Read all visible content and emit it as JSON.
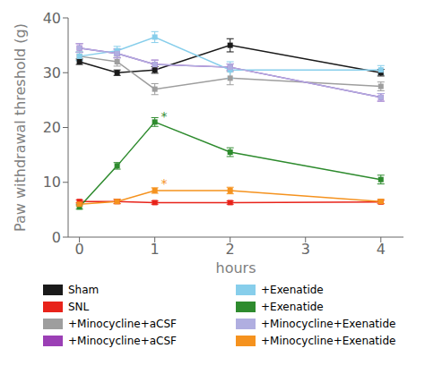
{
  "chart_data": {
    "type": "line",
    "xlabel": "hours",
    "ylabel": "Paw withdrawal threshold (g)",
    "x": [
      0,
      0.5,
      1,
      2,
      4
    ],
    "xlim": [
      -0.15,
      4.3
    ],
    "xticks": [
      0,
      1,
      2,
      3,
      4
    ],
    "ylim": [
      0,
      40
    ],
    "yticks": [
      0,
      10,
      20,
      30,
      40
    ],
    "grid": false,
    "legend": "bottom",
    "marker": "square",
    "line_style": "solid",
    "series": [
      {
        "name": "Sham",
        "color": "#1a1a1a",
        "values": [
          32,
          30,
          30.5,
          35,
          30
        ],
        "errors": [
          0.5,
          0.5,
          0.6,
          1.2,
          0.6
        ]
      },
      {
        "name": "SNL",
        "color": "#e8231a",
        "values": [
          6.5,
          6.5,
          6.3,
          6.3,
          6.4
        ],
        "errors": [
          0.3,
          0.4,
          0.3,
          0.3,
          0.3
        ]
      },
      {
        "name": "+Minocycline+aCSF",
        "color": "#9e9e9e",
        "values": [
          33,
          32,
          27,
          29,
          27.5
        ],
        "errors": [
          0.8,
          0.8,
          1.0,
          1.2,
          0.8
        ]
      },
      {
        "name": "+Minocycline+aCSF",
        "color": "#9b3fb5",
        "values": [
          34.5,
          33.5,
          31.5,
          31,
          25.5
        ],
        "errors": [
          0.8,
          0.8,
          0.8,
          0.6,
          0.7
        ]
      },
      {
        "name": "+Exenatide",
        "color": "#87ceeb",
        "values": [
          33,
          34,
          36.5,
          30.5,
          30.5
        ],
        "errors": [
          0.8,
          0.8,
          1.0,
          1.5,
          0.8
        ]
      },
      {
        "name": "+Exenatide",
        "color": "#2e8b2e",
        "values": [
          5.5,
          13,
          21,
          15.5,
          10.5
        ],
        "errors": [
          0.4,
          0.6,
          0.8,
          0.8,
          0.8
        ]
      },
      {
        "name": "+Minocycline+Exenatide",
        "color": "#b0aee0",
        "values": [
          34.5,
          33.5,
          31.5,
          31,
          25.5
        ],
        "errors": [
          0.8,
          0.8,
          0.8,
          0.6,
          0.7
        ]
      },
      {
        "name": "+Minocycline+Exenatide",
        "color": "#f5921e",
        "values": [
          6.0,
          6.5,
          8.5,
          8.5,
          6.5
        ],
        "errors": [
          0.3,
          0.4,
          0.5,
          0.6,
          0.4
        ]
      }
    ],
    "annotations": [
      {
        "x": 1.08,
        "y": 21.2,
        "text": "*",
        "color": "#2e8b2e"
      },
      {
        "x": 1.08,
        "y": 9.0,
        "text": "*",
        "color": "#f5921e"
      }
    ]
  }
}
